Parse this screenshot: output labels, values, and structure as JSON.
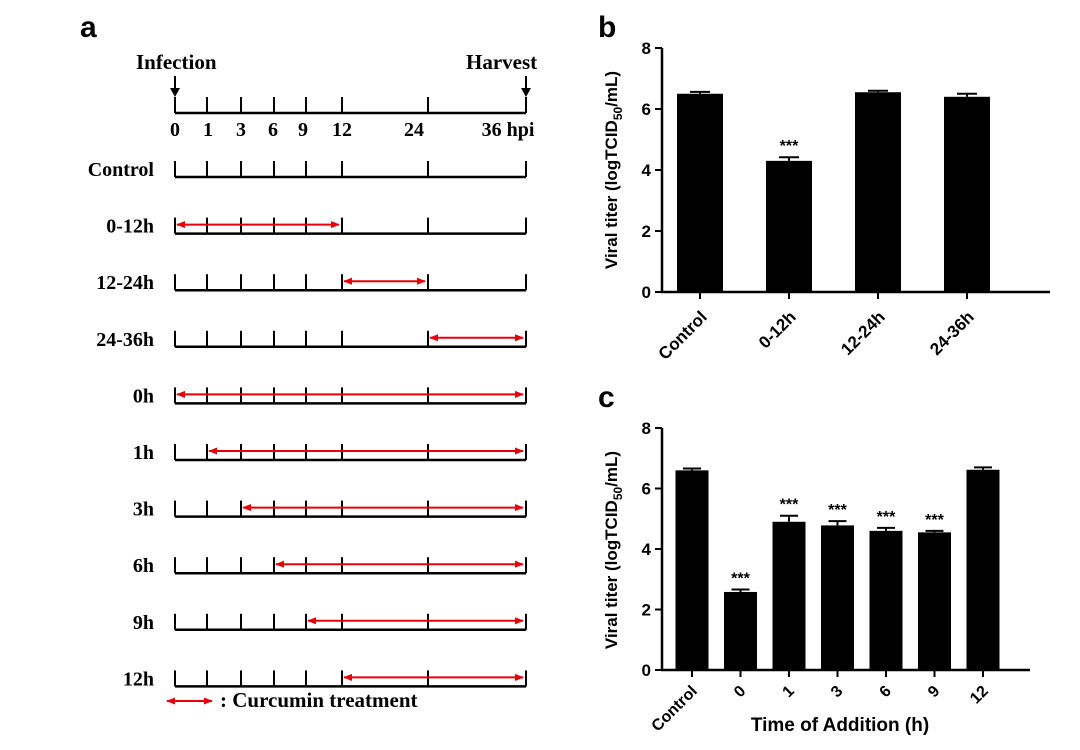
{
  "panel_a": {
    "letter": "a",
    "infection_label": "Infection",
    "harvest_label": "Harvest",
    "time_points": [
      0,
      1,
      3,
      6,
      9,
      12,
      24,
      36
    ],
    "time_tick_labels": [
      "0",
      "1",
      "3",
      "6",
      "9",
      "12",
      "24",
      "36 hpi"
    ],
    "rows": [
      {
        "label": "Control",
        "start": null,
        "end": null
      },
      {
        "label": "0-12h",
        "start": 0,
        "end": 12
      },
      {
        "label": "12-24h",
        "start": 12,
        "end": 24
      },
      {
        "label": "24-36h",
        "start": 24,
        "end": 36
      },
      {
        "label": "0h",
        "start": 0,
        "end": 36
      },
      {
        "label": "1h",
        "start": 1,
        "end": 36
      },
      {
        "label": "3h",
        "start": 3,
        "end": 36
      },
      {
        "label": "6h",
        "start": 6,
        "end": 36
      },
      {
        "label": "9h",
        "start": 9,
        "end": 36
      },
      {
        "label": "12h",
        "start": 12,
        "end": 36
      }
    ],
    "legend_label": ": Curcumin treatment",
    "arrow_color": "#e8000b"
  },
  "chart_data": [
    {
      "type": "bar",
      "panel": "b",
      "categories": [
        "Control",
        "0-12h",
        "12-24h",
        "24-36h"
      ],
      "values": [
        6.5,
        4.3,
        6.55,
        6.4
      ],
      "errors": [
        0.06,
        0.12,
        0.05,
        0.1
      ],
      "annotations": [
        "",
        "***",
        "",
        ""
      ],
      "ylabel": "Viral titer (logTCID50/mL)",
      "xlabel": "",
      "ylim": [
        0,
        8
      ],
      "yticks": [
        0,
        2,
        4,
        6,
        8
      ],
      "bar_color": "#000000"
    },
    {
      "type": "bar",
      "panel": "c",
      "categories": [
        "Control",
        "0",
        "1",
        "3",
        "6",
        "9",
        "12"
      ],
      "values": [
        6.6,
        2.58,
        4.9,
        4.78,
        4.6,
        4.55,
        6.62
      ],
      "errors": [
        0.06,
        0.08,
        0.2,
        0.14,
        0.1,
        0.05,
        0.08
      ],
      "annotations": [
        "",
        "***",
        "***",
        "***",
        "***",
        "***",
        ""
      ],
      "ylabel": "Viral titer (logTCID50/mL)",
      "xlabel": "Time of Addition (h)",
      "ylim": [
        0,
        8
      ],
      "yticks": [
        0,
        2,
        4,
        6,
        8
      ],
      "bar_color": "#000000"
    }
  ]
}
